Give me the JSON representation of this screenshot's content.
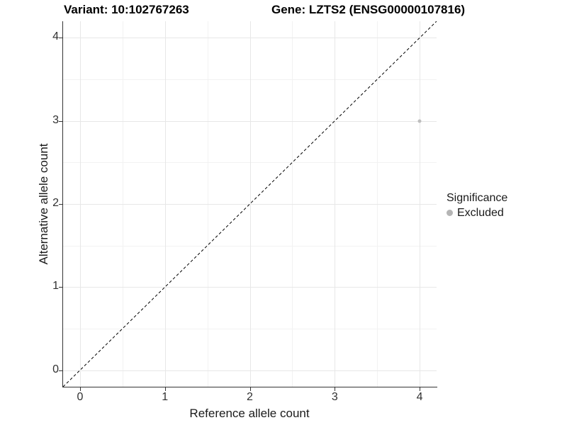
{
  "chart_data": {
    "type": "scatter",
    "title_left": "Variant: 10:102767263",
    "title_right": "Gene: LZTS2 (ENSG00000107816)",
    "xlabel": "Reference allele count",
    "ylabel": "Alternative allele count",
    "xlim": [
      -0.2,
      4.2
    ],
    "ylim": [
      -0.2,
      4.2
    ],
    "x_ticks": [
      0,
      1,
      2,
      3,
      4
    ],
    "y_ticks": [
      0,
      1,
      2,
      3,
      4
    ],
    "x_minor": [
      0.5,
      1.5,
      2.5,
      3.5
    ],
    "y_minor": [
      0.5,
      1.5,
      2.5,
      3.5
    ],
    "grid": true,
    "legend_position": "right",
    "legend": {
      "title": "Significance",
      "entries": [
        {
          "label": "Excluded",
          "color": "#b5b5b5"
        }
      ]
    },
    "points": [
      {
        "x": 4,
        "y": 3,
        "series": "Excluded",
        "color": "#bebebe"
      }
    ],
    "reference_line": {
      "type": "identity",
      "x1": -0.2,
      "y1": -0.2,
      "x2": 4.2,
      "y2": 4.2,
      "style": "dashed",
      "color": "#000000"
    }
  },
  "colors": {
    "grid_major": "#e7e7e7",
    "grid_minor": "#f2f2f2",
    "axis_line": "#333333",
    "point": "#bebebe"
  }
}
